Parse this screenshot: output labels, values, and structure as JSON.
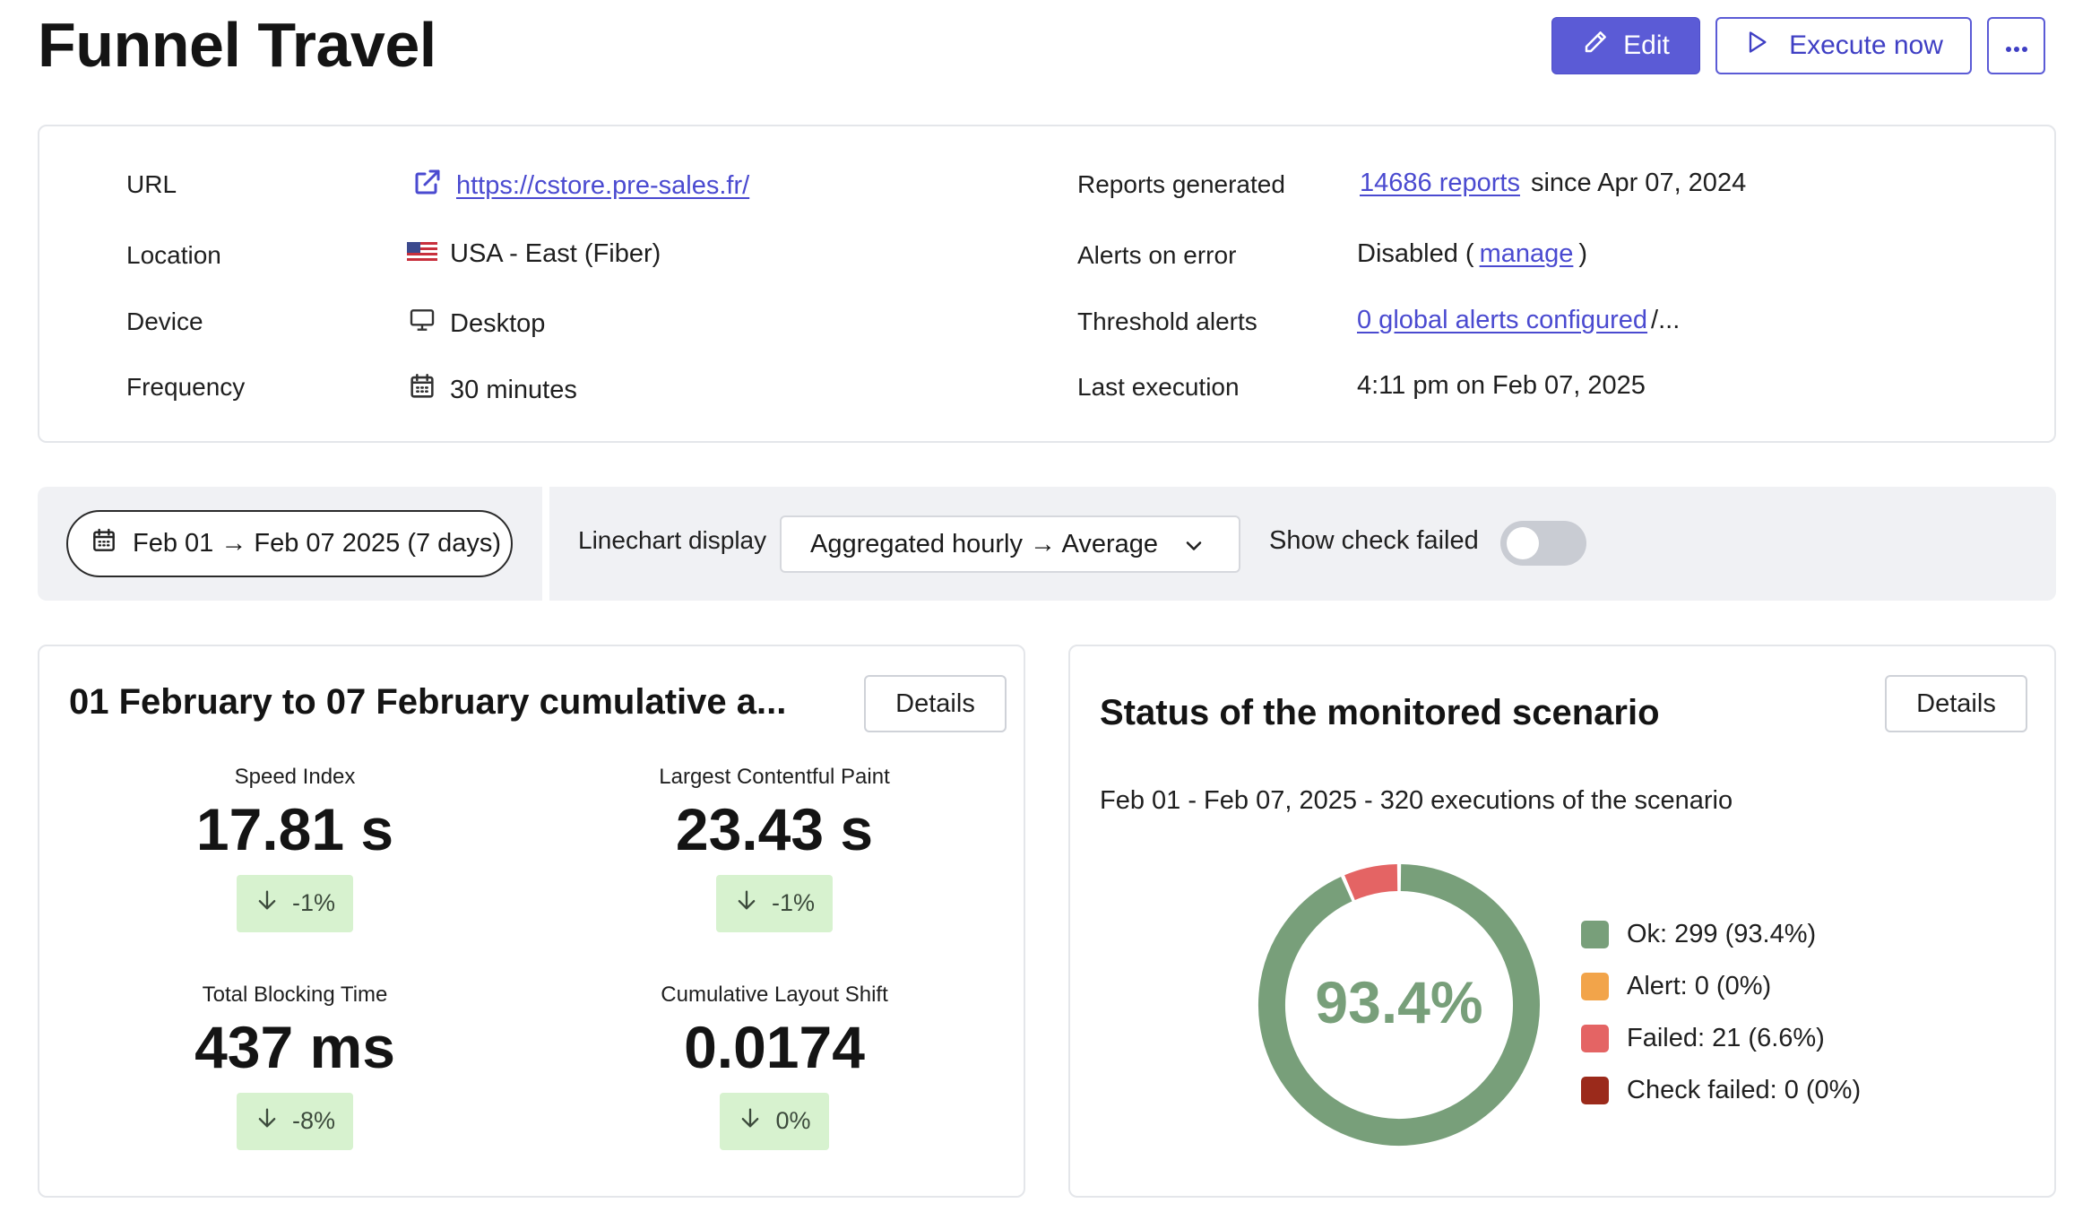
{
  "header": {
    "title": "Funnel Travel",
    "edit_label": "Edit",
    "execute_label": "Execute now",
    "more_label": "···"
  },
  "info": {
    "url_label": "URL",
    "url_value": "https://cstore.pre-sales.fr/",
    "location_label": "Location",
    "location_value": "USA - East (Fiber)",
    "device_label": "Device",
    "device_value": "Desktop",
    "frequency_label": "Frequency",
    "frequency_value": "30 minutes",
    "reports_label": "Reports generated",
    "reports_link": "14686 reports",
    "reports_since": "since Apr 07, 2024",
    "alerts_label": "Alerts on error",
    "alerts_prefix": "Disabled (",
    "alerts_link": "manage",
    "alerts_suffix": ")",
    "threshold_label": "Threshold alerts",
    "threshold_link": "0 global alerts configured",
    "threshold_suffix": "/...",
    "last_exec_label": "Last execution",
    "last_exec_value": "4:11 pm on Feb 07, 2025"
  },
  "filters": {
    "date_range": "Feb 01 → Feb 07 2025 (7 days)",
    "linechart_label": "Linechart display",
    "linechart_value": "Aggregated hourly → Average",
    "show_failed_label": "Show check failed",
    "show_failed_on": false
  },
  "metrics": {
    "title": "01 February to 07 February cumulative a...",
    "details_label": "Details",
    "items": [
      {
        "label": "Speed Index",
        "value": "17.81 s",
        "delta": "-1%"
      },
      {
        "label": "Largest Contentful Paint",
        "value": "23.43 s",
        "delta": "-1%"
      },
      {
        "label": "Total Blocking Time",
        "value": "437 ms",
        "delta": "-8%"
      },
      {
        "label": "Cumulative Layout Shift",
        "value": "0.0174",
        "delta": "0%"
      }
    ]
  },
  "status": {
    "title": "Status of the monitored scenario",
    "details_label": "Details",
    "subtitle": "Feb 01 - Feb 07, 2025 - 320 executions of the scenario",
    "center_label": "93.4%",
    "legend": [
      {
        "label": "Ok: 299 (93.4%)",
        "color": "#789f7a"
      },
      {
        "label": "Alert: 0 (0%)",
        "color": "#f2a44a"
      },
      {
        "label": "Failed: 21 (6.6%)",
        "color": "#e46464"
      },
      {
        "label": "Check failed: 0 (0%)",
        "color": "#9b2a1b"
      }
    ]
  },
  "chart_data": {
    "type": "pie",
    "categories": [
      "Ok",
      "Alert",
      "Failed",
      "Check failed"
    ],
    "values": [
      299,
      0,
      21,
      0
    ],
    "colors": [
      "#789f7a",
      "#f2a44a",
      "#e46464",
      "#9b2a1b"
    ]
  }
}
